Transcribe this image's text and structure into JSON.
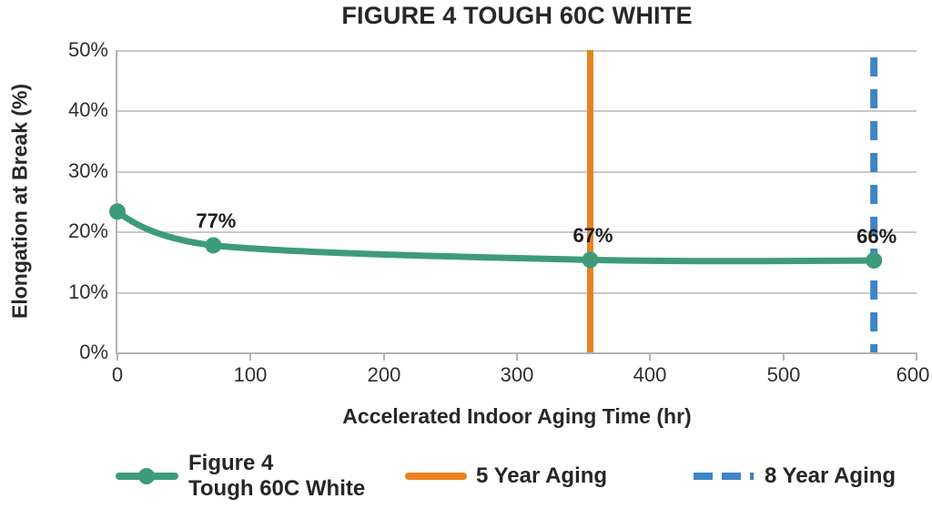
{
  "chart": {
    "title": "FIGURE 4 TOUGH 60C WHITE",
    "x_axis_label": "Accelerated Indoor Aging Time (hr)",
    "y_axis_label": "Elongation at Break (%)"
  },
  "chart_data": {
    "type": "line",
    "title": "FIGURE 4 TOUGH 60C WHITE",
    "xlabel": "Accelerated Indoor Aging Time (hr)",
    "ylabel": "Elongation at Break (%)",
    "xlim": [
      0,
      600
    ],
    "ylim": [
      0,
      50
    ],
    "x_ticks": [
      "0",
      "100",
      "200",
      "300",
      "400",
      "500",
      "600"
    ],
    "y_ticks": [
      "0%",
      "10%",
      "20%",
      "30%",
      "40%",
      "50%"
    ],
    "grid": "horizontal",
    "legend_position": "bottom",
    "series": [
      {
        "name": "Figure 4 Tough 60C White",
        "color": "#3d9b7c",
        "style": "solid-line-with-markers",
        "points": [
          {
            "x": 0,
            "y": 23.3,
            "label": ""
          },
          {
            "x": 72,
            "y": 17.7,
            "label": "77%"
          },
          {
            "x": 355,
            "y": 15.3,
            "label": "67%"
          },
          {
            "x": 568,
            "y": 15.2,
            "label": "66%"
          }
        ]
      }
    ],
    "vlines": [
      {
        "name": "5 Year Aging",
        "x": 355,
        "color": "#e8821f",
        "style": "solid"
      },
      {
        "name": "8 Year Aging",
        "x": 568,
        "color": "#3d85c6",
        "style": "dashed"
      }
    ]
  },
  "legend": {
    "items": [
      {
        "line1": "Figure 4",
        "line2": "Tough 60C White",
        "color": "#3d9b7c",
        "style": "line-with-marker"
      },
      {
        "label": "5 Year Aging",
        "color": "#e8821f",
        "style": "solid"
      },
      {
        "label": "8 Year Aging",
        "color": "#3d85c6",
        "style": "dashed"
      }
    ]
  },
  "colors": {
    "series_green": "#3d9b7c",
    "vline_orange": "#e8821f",
    "vline_blue": "#3d85c6",
    "gridline_gray": "#c9c9c9",
    "axis_gray": "#b3b3b3",
    "text_dark": "#282828"
  }
}
